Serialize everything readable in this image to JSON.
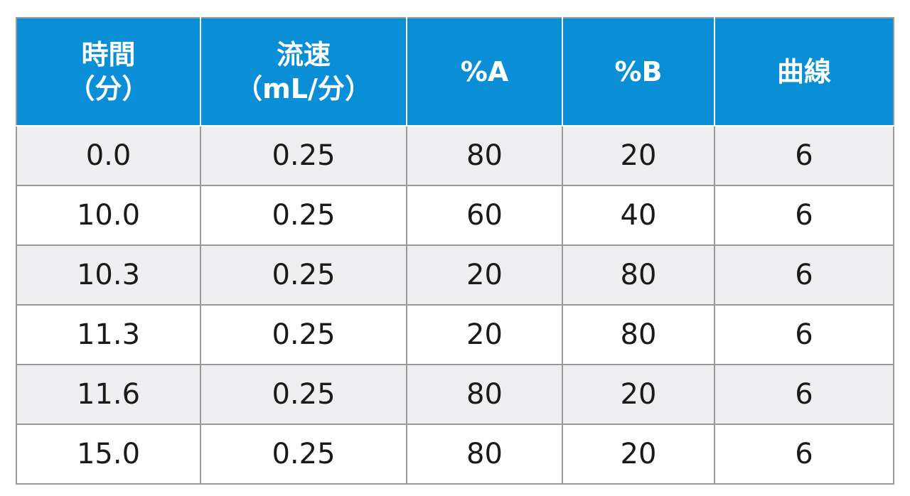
{
  "table": {
    "headers": [
      [
        "時間",
        "（分）"
      ],
      [
        "流速",
        "（mL/分）"
      ],
      [
        "%A"
      ],
      [
        "%B"
      ],
      [
        "曲線"
      ]
    ],
    "rows": [
      [
        "0.0",
        "0.25",
        "80",
        "20",
        "6"
      ],
      [
        "10.0",
        "0.25",
        "60",
        "40",
        "6"
      ],
      [
        "10.3",
        "0.25",
        "20",
        "80",
        "6"
      ],
      [
        "11.3",
        "0.25",
        "20",
        "80",
        "6"
      ],
      [
        "11.6",
        "0.25",
        "80",
        "20",
        "6"
      ],
      [
        "15.0",
        "0.25",
        "80",
        "20",
        "6"
      ]
    ]
  },
  "colors": {
    "header_background": "#0a8fd6",
    "header_text": "#ffffff",
    "row_alt_background": "#efeff1",
    "border": "#9a9a9a"
  }
}
